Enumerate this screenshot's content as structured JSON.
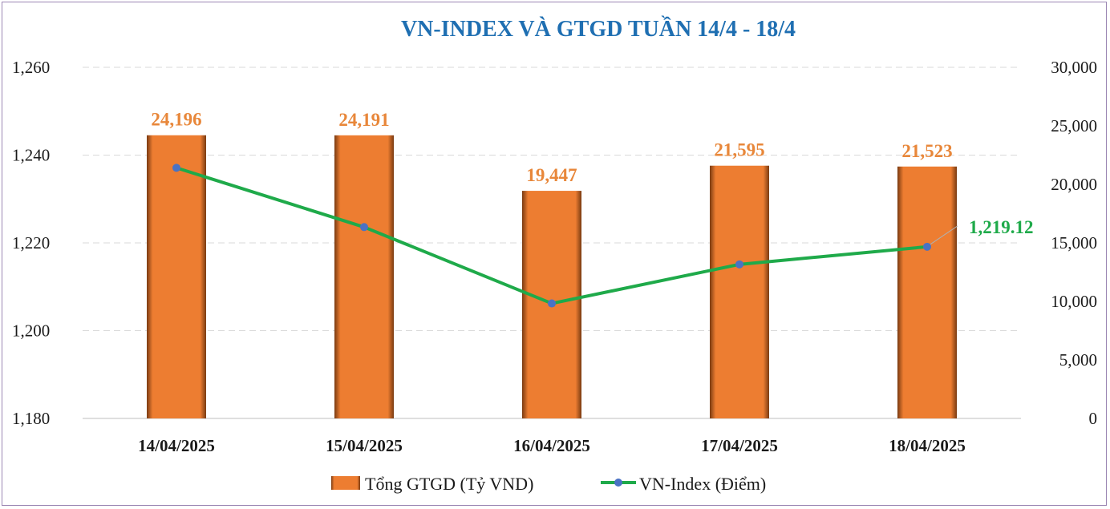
{
  "chart_data": {
    "type": "bar",
    "title": "VN-INDEX VÀ GTGD TUẦN 14/4 -  18/4",
    "categories": [
      "14/04/2025",
      "15/04/2025",
      "16/04/2025",
      "17/04/2025",
      "18/04/2025"
    ],
    "series": [
      {
        "name": "Tổng GTGD (Tỷ VND)",
        "type": "bar",
        "axis": "right",
        "values": [
          24196,
          24191,
          19447,
          21595,
          21523
        ],
        "labels": [
          "24,196",
          "24,191",
          "19,447",
          "21,595",
          "21,523"
        ],
        "color": "#ed7d31"
      },
      {
        "name": "VN-Index (Điểm)",
        "type": "line",
        "axis": "left",
        "values": [
          1237.1,
          1223.6,
          1206.2,
          1215.1,
          1219.12
        ],
        "labels": [
          "",
          "",
          "",
          "",
          "1,219.12"
        ],
        "color": "#1faa4a",
        "marker_color": "#4a72c4"
      }
    ],
    "y_left": {
      "ylim": [
        1180,
        1260
      ],
      "ticks": [
        "1,180",
        "1,200",
        "1,220",
        "1,240",
        "1,260"
      ]
    },
    "y_right": {
      "ylim": [
        0,
        30000
      ],
      "ticks": [
        "0",
        "5,000",
        "10,000",
        "15,000",
        "20,000",
        "25,000",
        "30,000"
      ]
    },
    "grid": true,
    "legend": "bottom"
  }
}
